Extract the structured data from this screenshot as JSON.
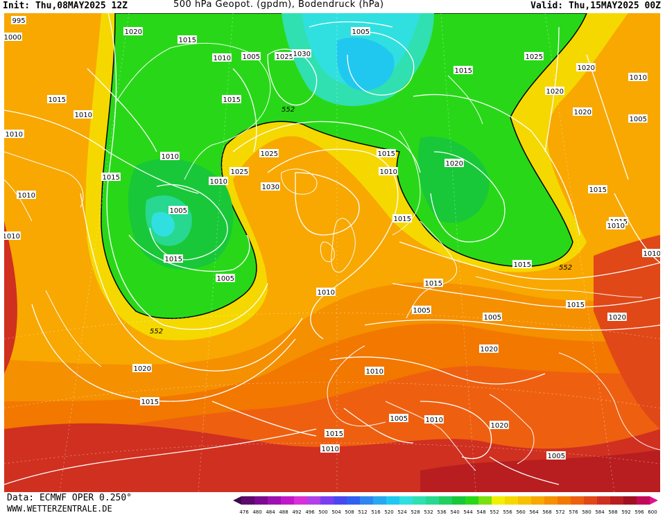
{
  "header": {
    "init": "Init: Thu,08MAY2025 12Z",
    "title": "500 hPa Geopot. (gpdm), Bodendruck (hPa)",
    "valid": "Valid: Thu,15MAY2025 00Z"
  },
  "footer": {
    "data_source": "Data: ECMWF OPER 0.250°",
    "website": "WWW.WETTERZENTRALE.DE"
  },
  "colorbar": {
    "labels": [
      "476",
      "480",
      "484",
      "488",
      "492",
      "496",
      "500",
      "504",
      "508",
      "512",
      "516",
      "520",
      "524",
      "528",
      "532",
      "536",
      "540",
      "544",
      "548",
      "552",
      "556",
      "560",
      "564",
      "568",
      "572",
      "576",
      "580",
      "584",
      "588",
      "592",
      "596",
      "600"
    ],
    "colors": [
      "#3d0a4a",
      "#5c0a6e",
      "#7a0a90",
      "#9d10b0",
      "#c018c8",
      "#d830d8",
      "#b040e8",
      "#7a3ef0",
      "#4a48f0",
      "#3060f0",
      "#2f86f0",
      "#28a8f0",
      "#20c8f0",
      "#30e0e0",
      "#30e0b0",
      "#28d890",
      "#20d060",
      "#18c838",
      "#28d818",
      "#78e010",
      "#f0f000",
      "#f5d800",
      "#f8c000",
      "#f8a800",
      "#f59000",
      "#f27800",
      "#ee6010",
      "#e04818",
      "#d03020",
      "#b81e20",
      "#a01020",
      "#c00a58",
      "#e01090"
    ]
  },
  "map": {
    "contour_552_label": "552",
    "pressure_labels": [
      "995",
      "1000",
      "1020",
      "1015",
      "1010",
      "1005",
      "1005",
      "1025",
      "1030",
      "1020",
      "1010",
      "1015",
      "1015",
      "1010",
      "1020",
      "1015",
      "1010",
      "1025",
      "1010",
      "1005",
      "1020",
      "1010",
      "1025",
      "1030",
      "1015",
      "1020",
      "1015",
      "1010",
      "1010",
      "1005",
      "1025",
      "1015",
      "1015",
      "1010",
      "1010",
      "1015",
      "1005",
      "1015",
      "1010",
      "1015",
      "1010",
      "1015",
      "1010",
      "1015",
      "1005",
      "1005",
      "1020",
      "1020",
      "1010",
      "1010",
      "1005",
      "1020",
      "1020",
      "1015",
      "1015",
      "1010",
      "1005"
    ]
  }
}
